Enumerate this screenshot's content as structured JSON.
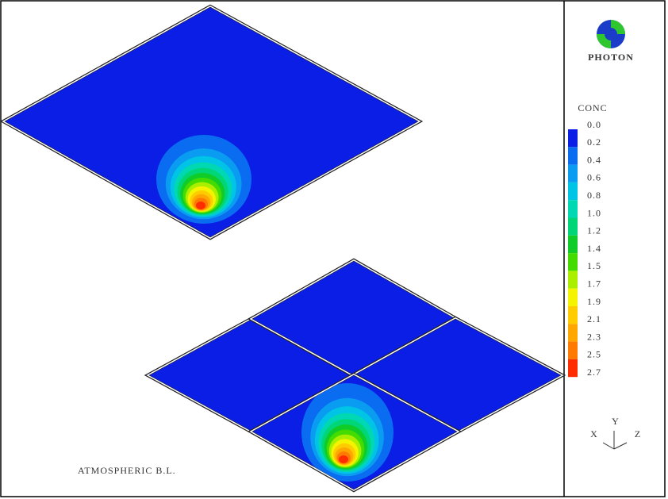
{
  "logo": {
    "label": "PHOTON"
  },
  "legend": {
    "title": "CONC",
    "labels": [
      "0.0",
      "0.2",
      "0.4",
      "0.6",
      "0.8",
      "1.0",
      "1.2",
      "1.4",
      "1.5",
      "1.7",
      "1.9",
      "2.1",
      "2.3",
      "2.5",
      "2.7"
    ],
    "colors": [
      "#0a1ee6",
      "#0a6cf0",
      "#0a9cf0",
      "#00c4e6",
      "#00d8b4",
      "#00d678",
      "#10cc28",
      "#44dc00",
      "#aaee00",
      "#f4f400",
      "#ffcc00",
      "#ffa600",
      "#ff7a00",
      "#ff2c00"
    ]
  },
  "caption": "ATMOSPHERIC B.L.",
  "axes": {
    "y": "Y",
    "x": "X",
    "z": "Z"
  }
}
